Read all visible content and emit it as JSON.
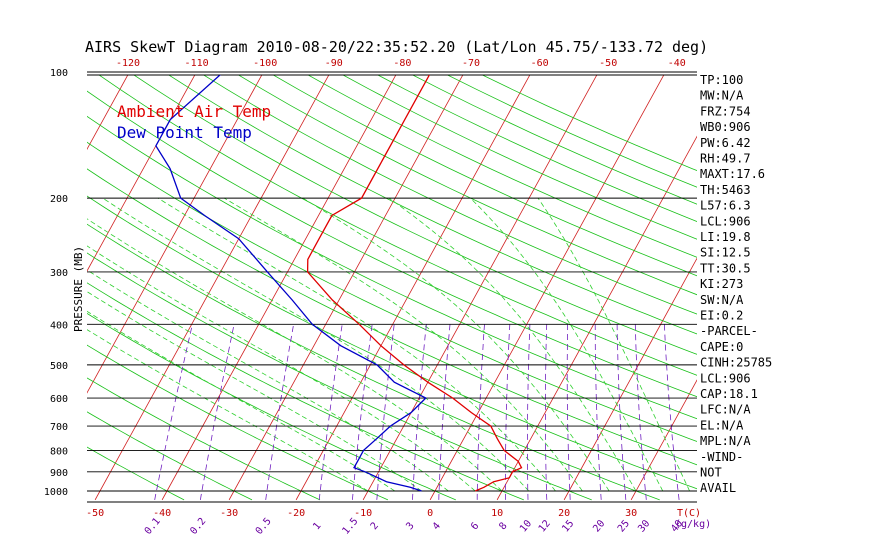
{
  "chart_data": {
    "type": "line",
    "title": "AIRS SkewT Diagram 2010-08-20/22:35:52.20 (Lat/Lon 45.75/-133.72 deg)",
    "ylabel": "PRESSURE (MB)",
    "xlabel_right": "T(C)",
    "mixing_unit": "(g/kg)",
    "y_scale": "log",
    "ylim": [
      1050,
      100
    ],
    "xlim_bottom": [
      -53,
      40
    ],
    "pressure_ticks": [
      100,
      200,
      300,
      400,
      500,
      600,
      700,
      800,
      900,
      1000
    ],
    "bottom_temp_ticks": [
      -50,
      -40,
      -30,
      -20,
      -10,
      0,
      10,
      20,
      30
    ],
    "top_temp_ticks": [
      -120,
      -110,
      -100,
      -90,
      -80,
      -70,
      -60,
      -50,
      -40
    ],
    "mixing_ratio_ticks": [
      "0.1",
      "0.2",
      "0.5",
      "1",
      "1.5",
      "2",
      "3",
      "4",
      "6",
      "8",
      "10",
      "12",
      "15",
      "20",
      "25",
      "30",
      "40"
    ],
    "legend": [
      {
        "label": "Ambient Air Temp",
        "color": "#e00000"
      },
      {
        "label": "Dew Point Temp",
        "color": "#0000c8"
      }
    ],
    "series": [
      {
        "name": "Ambient Air Temp",
        "color": "#e00000",
        "points": [
          [
            1000,
            6
          ],
          [
            980,
            7
          ],
          [
            950,
            8
          ],
          [
            930,
            10
          ],
          [
            900,
            10
          ],
          [
            880,
            11
          ],
          [
            850,
            10
          ],
          [
            800,
            7
          ],
          [
            750,
            5
          ],
          [
            700,
            3
          ],
          [
            650,
            -1
          ],
          [
            600,
            -5
          ],
          [
            550,
            -10
          ],
          [
            500,
            -15
          ],
          [
            450,
            -20
          ],
          [
            400,
            -25
          ],
          [
            350,
            -31
          ],
          [
            300,
            -37
          ],
          [
            280,
            -38
          ],
          [
            250,
            -38
          ],
          [
            220,
            -38
          ],
          [
            200,
            -35
          ],
          [
            180,
            -35
          ],
          [
            160,
            -35
          ],
          [
            140,
            -35
          ],
          [
            120,
            -35
          ],
          [
            100,
            -35
          ]
        ]
      },
      {
        "name": "Dew Point Temp",
        "color": "#0000c8",
        "points": [
          [
            1000,
            -2
          ],
          [
            980,
            -4
          ],
          [
            950,
            -8
          ],
          [
            900,
            -12
          ],
          [
            880,
            -14
          ],
          [
            850,
            -14
          ],
          [
            800,
            -14
          ],
          [
            750,
            -13
          ],
          [
            700,
            -12
          ],
          [
            650,
            -10
          ],
          [
            600,
            -9
          ],
          [
            550,
            -15
          ],
          [
            500,
            -19
          ],
          [
            450,
            -26
          ],
          [
            400,
            -32
          ],
          [
            350,
            -37
          ],
          [
            300,
            -43
          ],
          [
            250,
            -50
          ],
          [
            220,
            -57
          ],
          [
            200,
            -62
          ],
          [
            170,
            -66
          ],
          [
            150,
            -70
          ],
          [
            130,
            -70
          ],
          [
            100,
            -66
          ]
        ]
      }
    ],
    "indices": [
      "TP:100",
      "MW:N/A",
      "FRZ:754",
      "WB0:906",
      "PW:6.42",
      "RH:49.7",
      "MAXT:17.6",
      "TH:5463",
      "L57:6.3",
      "LCL:906",
      "LI:19.8",
      "SI:12.5",
      "TT:30.5",
      "KI:273",
      "SW:N/A",
      "EI:0.2",
      "-PARCEL-",
      "CAPE:0",
      "CINH:25785",
      "LCL:906",
      "CAP:18.1",
      "LFC:N/A",
      "EL:N/A",
      "MPL:N/A",
      "-WIND-",
      "NOT",
      "AVAIL"
    ]
  },
  "colors": {
    "isotherm": "#d02020",
    "dry_adiabat": "#18c018",
    "moist_adiabat": "#30d030",
    "mixing_ratio": "#7020c0",
    "isobar": "#000000"
  }
}
